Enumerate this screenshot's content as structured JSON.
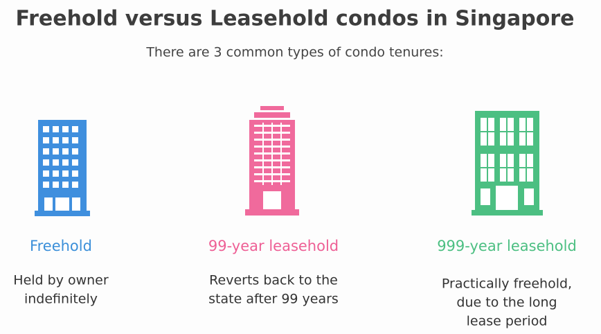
{
  "header": {
    "title": "Freehold versus Leasehold condos in Singapore",
    "subtitle": "There are 3 common types of condo tenures:"
  },
  "items": [
    {
      "label": "Freehold",
      "description": [
        "Held by owner",
        "indefinitely"
      ]
    },
    {
      "label": "99-year leasehold",
      "description": [
        "Reverts back to the",
        "state after 99 years"
      ]
    },
    {
      "label": "999-year leasehold",
      "description": [
        "Practically freehold,",
        "due to the long",
        "lease period"
      ]
    }
  ]
}
